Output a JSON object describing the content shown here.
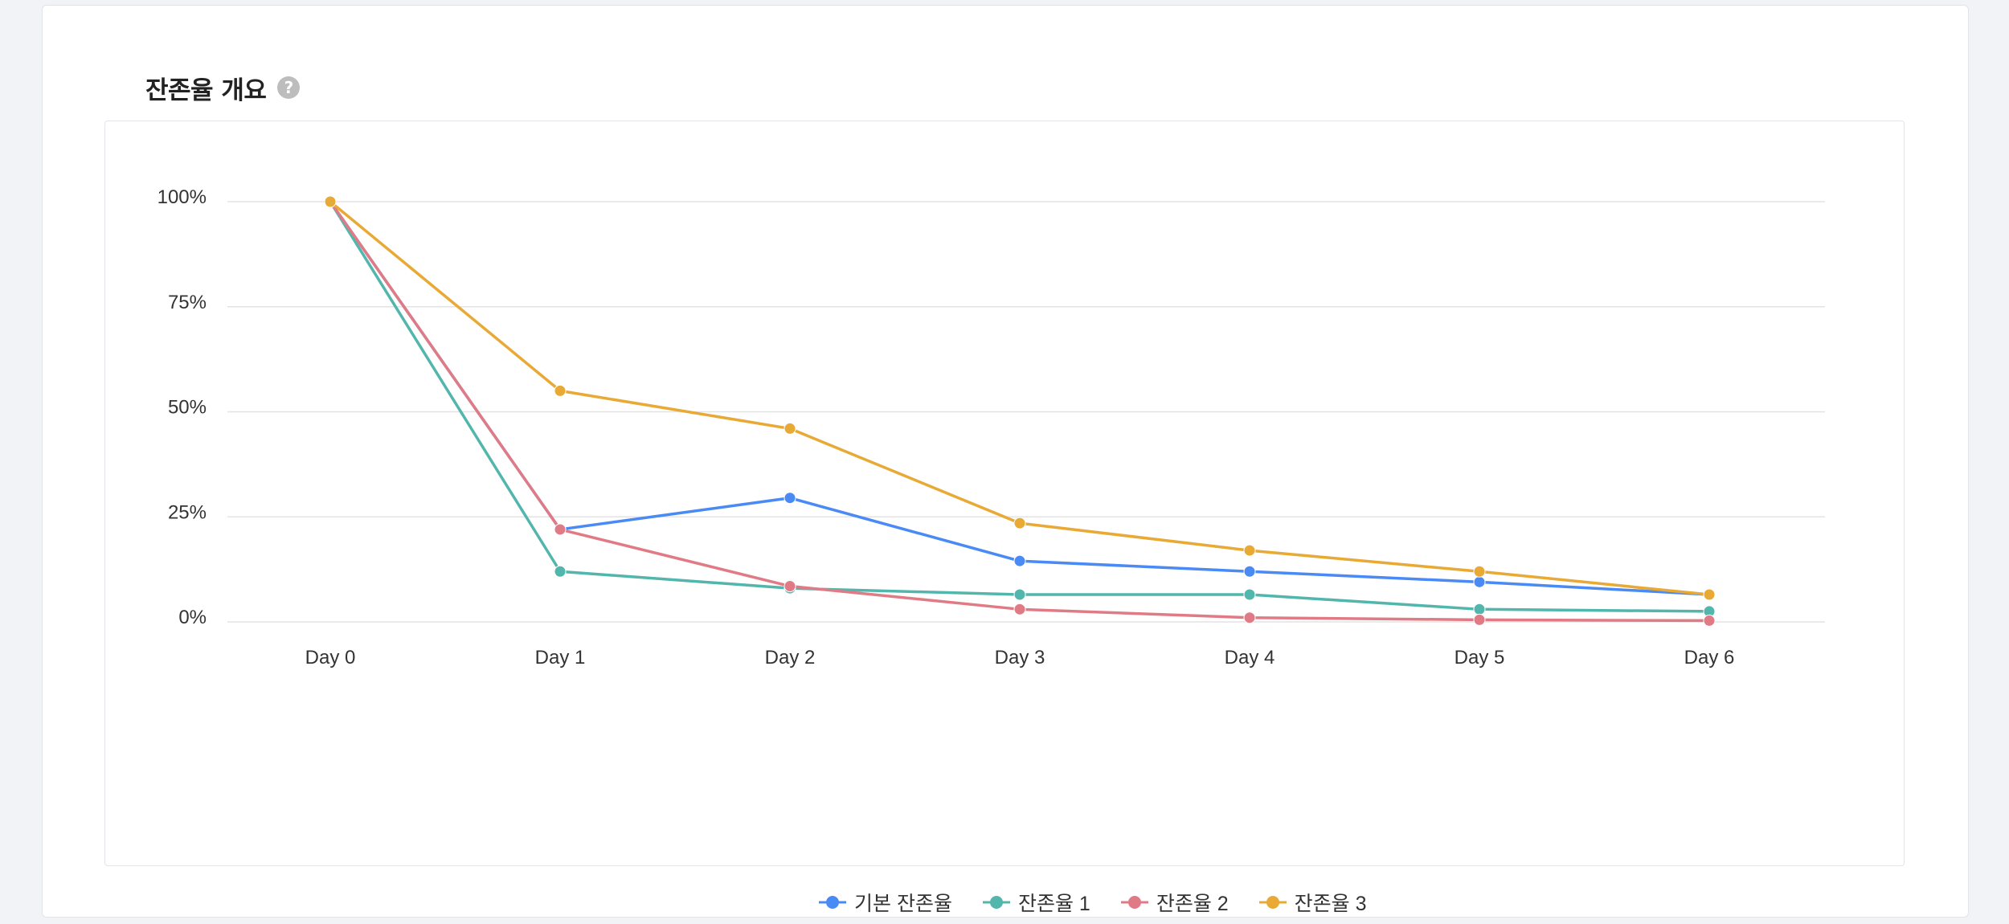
{
  "header": {
    "title": "잔존율 개요",
    "help_icon": "question-circle-icon"
  },
  "chart_data": {
    "type": "line",
    "categories": [
      "Day 0",
      "Day 1",
      "Day 2",
      "Day 3",
      "Day 4",
      "Day 5",
      "Day 6"
    ],
    "ylim": [
      0,
      100
    ],
    "yticks": [
      {
        "value": 0,
        "label": "0%"
      },
      {
        "value": 25,
        "label": "25%"
      },
      {
        "value": 50,
        "label": "50%"
      },
      {
        "value": 75,
        "label": "75%"
      },
      {
        "value": 100,
        "label": "100%"
      }
    ],
    "grid": true,
    "legend_position": "bottom-center",
    "series": [
      {
        "name": "기본 잔존율",
        "color": "#4a8af4",
        "values": [
          100,
          22,
          29.5,
          14.5,
          12,
          9.5,
          6.5
        ]
      },
      {
        "name": "잔존율 1",
        "color": "#52b6ac",
        "values": [
          100,
          12,
          8,
          6.5,
          6.5,
          3,
          2.5
        ]
      },
      {
        "name": "잔존율 2",
        "color": "#e07b85",
        "values": [
          100,
          22,
          8.5,
          3,
          1,
          0.5,
          0.3
        ]
      },
      {
        "name": "잔존율 3",
        "color": "#e8a935",
        "values": [
          100,
          55,
          46,
          23.5,
          17,
          12,
          6.5
        ]
      }
    ]
  }
}
